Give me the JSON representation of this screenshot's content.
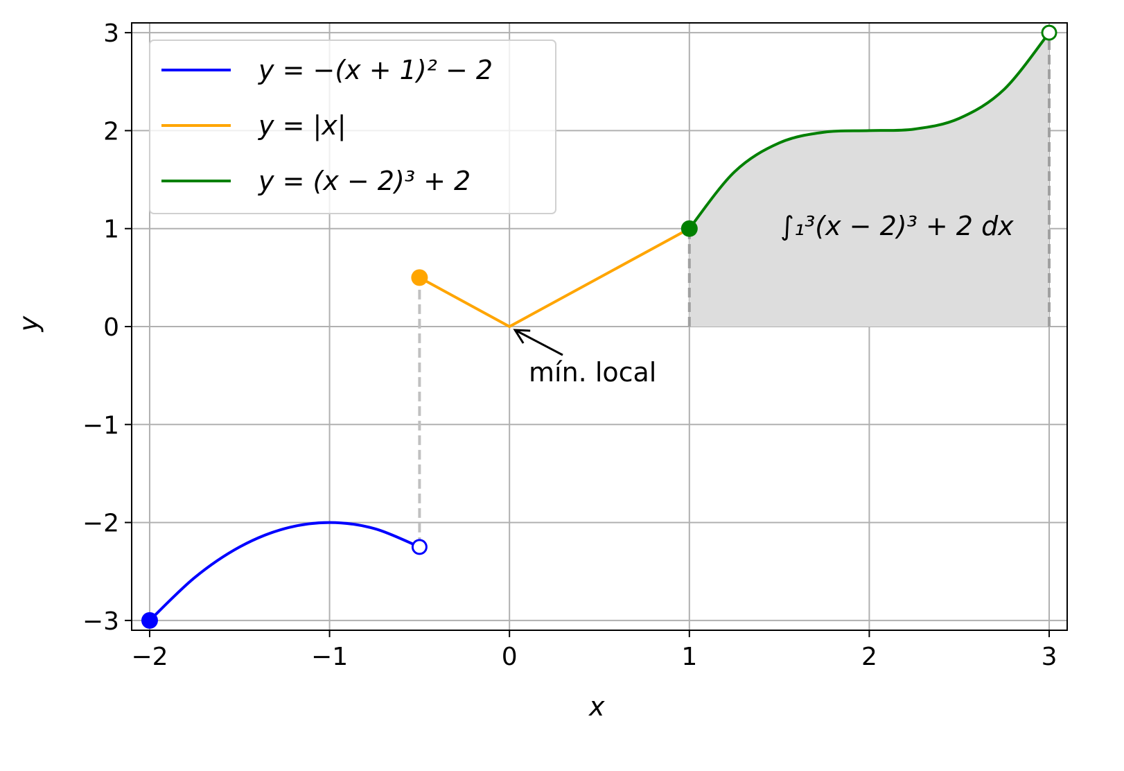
{
  "chart_data": {
    "type": "line",
    "xlabel": "x",
    "ylabel": "y",
    "xlim": [
      -2.1,
      3.1
    ],
    "ylim": [
      -3.1,
      3.1
    ],
    "grid": true,
    "legend_position": "top-left",
    "x_ticks": [
      "−2",
      "−1",
      "0",
      "1",
      "2",
      "3"
    ],
    "x_tick_values": [
      -2,
      -1,
      0,
      1,
      2,
      3
    ],
    "y_ticks": [
      "−3",
      "−2",
      "−1",
      "0",
      "1",
      "2",
      "3"
    ],
    "y_tick_values": [
      -3,
      -2,
      -1,
      0,
      1,
      2,
      3
    ],
    "series": [
      {
        "name": "y = −(x + 1)² − 2",
        "color": "#0000ff",
        "x": [
          -2,
          -1.75,
          -1.5,
          -1.25,
          -1,
          -0.75,
          -0.5
        ],
        "y": [
          -3,
          -2.5625,
          -2.25,
          -2.0625,
          -2,
          -2.0625,
          -2.25
        ],
        "start_marker": "filled",
        "end_marker": "open"
      },
      {
        "name": "y = |x|",
        "color": "#ffa500",
        "x": [
          -0.5,
          0,
          1
        ],
        "y": [
          0.5,
          0,
          1
        ],
        "start_marker": "filled",
        "end_marker": "none"
      },
      {
        "name": "y = (x − 2)³ + 2",
        "color": "#008000",
        "x": [
          1,
          1.25,
          1.5,
          1.75,
          2,
          2.25,
          2.5,
          2.75,
          3
        ],
        "y": [
          1,
          1.578125,
          1.875,
          1.984375,
          2,
          2.015625,
          2.125,
          2.421875,
          3
        ],
        "start_marker": "filled",
        "end_marker": "open"
      }
    ],
    "shaded_region": {
      "series_index": 2,
      "x_from": 1,
      "x_to": 3,
      "color": "#dddddd"
    },
    "dashed_lines": [
      {
        "x": -0.5,
        "y_from": -2.25,
        "y_to": 0.5,
        "color": "#c0c0c0"
      },
      {
        "x": 1,
        "y_from": 0,
        "y_to": 1,
        "color": "#a0a0a0"
      },
      {
        "x": 3,
        "y_from": 0,
        "y_to": 3,
        "color": "#a0a0a0"
      }
    ],
    "annotations": [
      {
        "text": "mín. local",
        "arrow_to": [
          0,
          0
        ]
      },
      {
        "text": "∫₁³(x − 2)³ + 2 dx"
      }
    ]
  },
  "labels": {
    "integral_sign": "∫",
    "integral_upper": "3",
    "integral_lower": "1",
    "integral_body": "(x − 2)³ + 2 dx"
  }
}
